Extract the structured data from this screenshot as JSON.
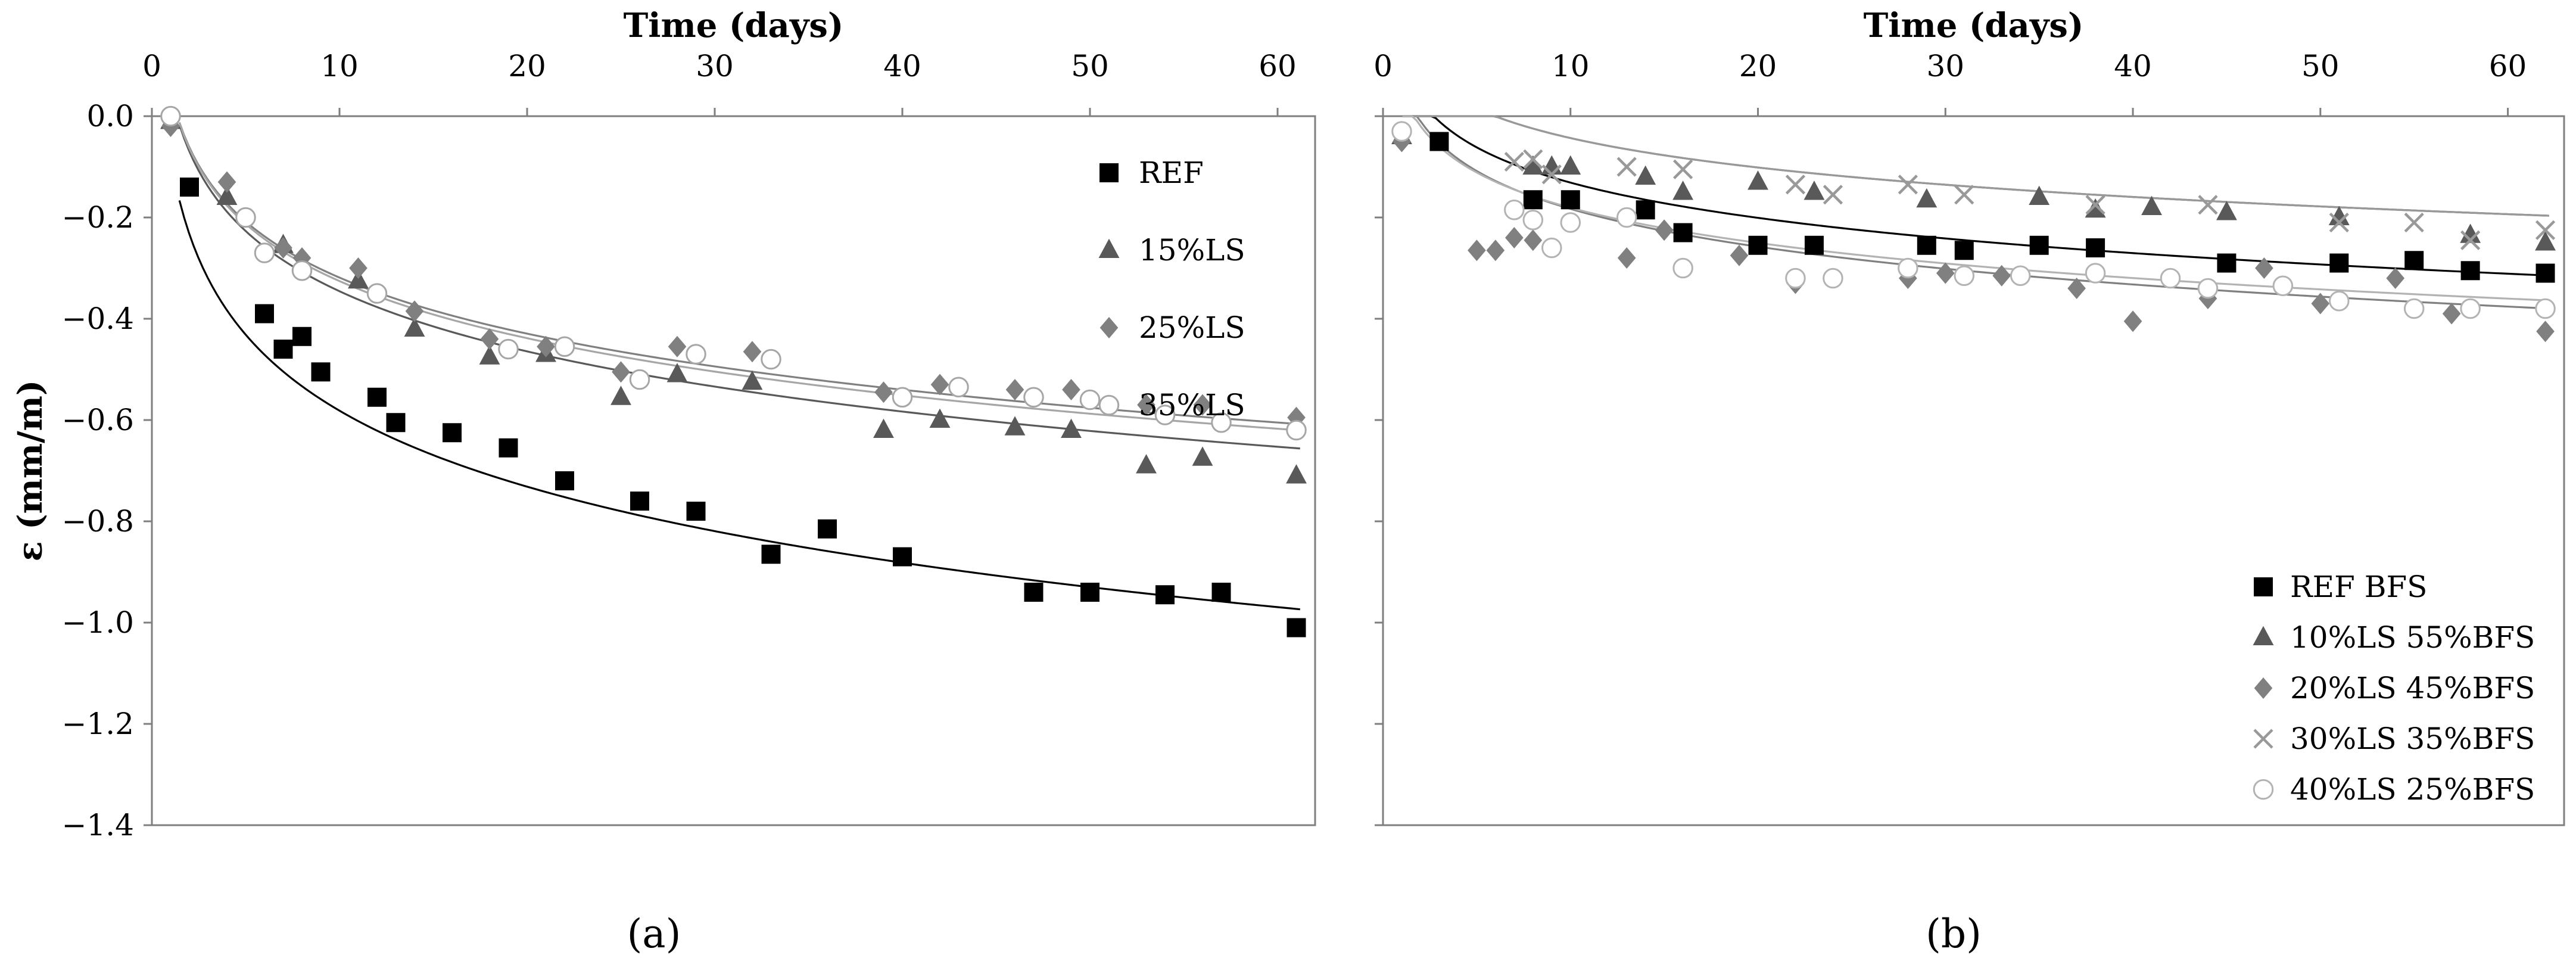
{
  "chart_data": [
    {
      "panel": "a",
      "type": "scatter",
      "xlabel": "Time (days)",
      "xlabel_position": "top",
      "ylabel": "ε (mm/m)",
      "xlim": [
        0,
        62
      ],
      "ylim": [
        -1.4,
        0.0
      ],
      "xticks": [
        0,
        10,
        20,
        30,
        40,
        50,
        60
      ],
      "yticks": [
        0.0,
        -0.2,
        -0.4,
        -0.6,
        -0.8,
        -1.0,
        -1.2,
        -1.4
      ],
      "ytick_labels": [
        "0.0",
        "−0.2",
        "−0.4",
        "−0.6",
        "−0.8",
        "−1.0",
        "−1.2",
        "−1.4"
      ],
      "legend_position": "top-right",
      "trendline": "logarithmic",
      "series": [
        {
          "name": "REF",
          "marker": "square",
          "color": "#000000",
          "fill": "#000000",
          "points": [
            [
              2,
              -0.14
            ],
            [
              6,
              -0.39
            ],
            [
              7,
              -0.46
            ],
            [
              8,
              -0.435
            ],
            [
              9,
              -0.505
            ],
            [
              12,
              -0.555
            ],
            [
              13,
              -0.605
            ],
            [
              16,
              -0.625
            ],
            [
              19,
              -0.655
            ],
            [
              22,
              -0.72
            ],
            [
              26,
              -0.76
            ],
            [
              29,
              -0.78
            ],
            [
              33,
              -0.865
            ],
            [
              36,
              -0.815
            ],
            [
              40,
              -0.87
            ],
            [
              47,
              -0.94
            ],
            [
              50,
              -0.94
            ],
            [
              54,
              -0.945
            ],
            [
              57,
              -0.94
            ],
            [
              61,
              -1.01
            ]
          ],
          "fit": {
            "a": -0.083,
            "b": -0.2165,
            "x0": 1.47
          }
        },
        {
          "name": "15%LS",
          "marker": "triangle",
          "color": "#595959",
          "fill": "#595959",
          "points": [
            [
              1,
              -0.01
            ],
            [
              4,
              -0.16
            ],
            [
              7,
              -0.255
            ],
            [
              11,
              -0.325
            ],
            [
              14,
              -0.42
            ],
            [
              18,
              -0.475
            ],
            [
              21,
              -0.47
            ],
            [
              25,
              -0.555
            ],
            [
              28,
              -0.51
            ],
            [
              32,
              -0.525
            ],
            [
              39,
              -0.62
            ],
            [
              42,
              -0.6
            ],
            [
              46,
              -0.615
            ],
            [
              49,
              -0.62
            ],
            [
              53,
              -0.69
            ],
            [
              56,
              -0.675
            ],
            [
              61,
              -0.71
            ]
          ],
          "fit": {
            "a": 0.049,
            "b": -0.1714,
            "x0": 1.47
          }
        },
        {
          "name": "25%LS",
          "marker": "diamond",
          "color": "#808080",
          "fill": "#808080",
          "points": [
            [
              1,
              -0.02
            ],
            [
              4,
              -0.13
            ],
            [
              7,
              -0.26
            ],
            [
              8,
              -0.28
            ],
            [
              11,
              -0.3
            ],
            [
              14,
              -0.385
            ],
            [
              18,
              -0.44
            ],
            [
              21,
              -0.455
            ],
            [
              25,
              -0.505
            ],
            [
              28,
              -0.455
            ],
            [
              32,
              -0.465
            ],
            [
              39,
              -0.545
            ],
            [
              42,
              -0.53
            ],
            [
              46,
              -0.54
            ],
            [
              49,
              -0.54
            ],
            [
              53,
              -0.57
            ],
            [
              56,
              -0.57
            ],
            [
              61,
              -0.595
            ]
          ],
          "fit": {
            "a": 0.049,
            "b": -0.1597,
            "x0": 1.47
          }
        },
        {
          "name": "35%LS",
          "marker": "circle",
          "color": "#a6a6a6",
          "fill": "#ffffff",
          "points": [
            [
              1,
              0.0
            ],
            [
              5,
              -0.2
            ],
            [
              6,
              -0.27
            ],
            [
              8,
              -0.305
            ],
            [
              12,
              -0.35
            ],
            [
              19,
              -0.46
            ],
            [
              22,
              -0.455
            ],
            [
              26,
              -0.52
            ],
            [
              29,
              -0.47
            ],
            [
              33,
              -0.48
            ],
            [
              40,
              -0.555
            ],
            [
              43,
              -0.535
            ],
            [
              47,
              -0.555
            ],
            [
              50,
              -0.56
            ],
            [
              54,
              -0.59
            ],
            [
              57,
              -0.605
            ],
            [
              61,
              -0.62
            ]
          ],
          "fit": {
            "a": 0.049,
            "b": -0.1627,
            "x0": 1.47
          }
        }
      ]
    },
    {
      "panel": "b",
      "type": "scatter",
      "xlabel": "Time (days)",
      "xlabel_position": "top",
      "ylabel": "",
      "xlim": [
        0,
        63
      ],
      "ylim": [
        -1.4,
        0.0
      ],
      "xticks": [
        0,
        10,
        20,
        30,
        40,
        50,
        60
      ],
      "yticks": [
        0.0,
        -0.2,
        -0.4,
        -0.6,
        -0.8,
        -1.0,
        -1.2,
        -1.4
      ],
      "legend_position": "bottom-right",
      "trendline": "logarithmic",
      "series": [
        {
          "name": "REF BFS",
          "marker": "square",
          "color": "#000000",
          "fill": "#000000",
          "points": [
            [
              3,
              -0.05
            ],
            [
              8,
              -0.165
            ],
            [
              10,
              -0.165
            ],
            [
              14,
              -0.185
            ],
            [
              16,
              -0.23
            ],
            [
              20,
              -0.255
            ],
            [
              23,
              -0.255
            ],
            [
              29,
              -0.255
            ],
            [
              31,
              -0.265
            ],
            [
              35,
              -0.255
            ],
            [
              38,
              -0.26
            ],
            [
              45,
              -0.29
            ],
            [
              51,
              -0.29
            ],
            [
              55,
              -0.285
            ],
            [
              58,
              -0.305
            ],
            [
              62,
              -0.31
            ]
          ],
          "fit": {
            "a": 0.1,
            "b": -0.1004,
            "x0": 1.03
          }
        },
        {
          "name": "10%LS 55%BFS",
          "marker": "triangle",
          "color": "#595959",
          "fill": "#595959",
          "points": [
            [
              1,
              -0.04
            ],
            [
              8,
              -0.1
            ],
            [
              9,
              -0.1
            ],
            [
              10,
              -0.1
            ],
            [
              14,
              -0.12
            ],
            [
              16,
              -0.15
            ],
            [
              20,
              -0.13
            ],
            [
              23,
              -0.15
            ],
            [
              29,
              -0.165
            ],
            [
              35,
              -0.16
            ],
            [
              38,
              -0.185
            ],
            [
              41,
              -0.18
            ],
            [
              45,
              -0.19
            ],
            [
              51,
              -0.2
            ],
            [
              58,
              -0.235
            ],
            [
              62,
              -0.25
            ]
          ],
          "fit": {
            "a": 0.15,
            "b": -0.0839,
            "x0": 1.03
          }
        },
        {
          "name": "20%LS 45%BFS",
          "marker": "diamond",
          "color": "#808080",
          "fill": "#808080",
          "points": [
            [
              1,
              -0.05
            ],
            [
              5,
              -0.265
            ],
            [
              6,
              -0.265
            ],
            [
              7,
              -0.24
            ],
            [
              8,
              -0.245
            ],
            [
              13,
              -0.28
            ],
            [
              15,
              -0.225
            ],
            [
              19,
              -0.275
            ],
            [
              22,
              -0.33
            ],
            [
              28,
              -0.32
            ],
            [
              30,
              -0.31
            ],
            [
              33,
              -0.315
            ],
            [
              37,
              -0.34
            ],
            [
              40,
              -0.405
            ],
            [
              44,
              -0.36
            ],
            [
              47,
              -0.3
            ],
            [
              50,
              -0.37
            ],
            [
              54,
              -0.32
            ],
            [
              57,
              -0.39
            ],
            [
              62,
              -0.425
            ]
          ],
          "fit": {
            "a": 0.065,
            "b": -0.1077,
            "x0": 1.03
          }
        },
        {
          "name": "30%LS 35%BFS",
          "marker": "cross",
          "color": "#999999",
          "fill": "none",
          "points": [
            [
              7,
              -0.09
            ],
            [
              8,
              -0.085
            ],
            [
              9,
              -0.115
            ],
            [
              13,
              -0.1
            ],
            [
              16,
              -0.105
            ],
            [
              22,
              -0.135
            ],
            [
              24,
              -0.155
            ],
            [
              28,
              -0.135
            ],
            [
              31,
              -0.155
            ],
            [
              38,
              -0.175
            ],
            [
              44,
              -0.175
            ],
            [
              51,
              -0.21
            ],
            [
              55,
              -0.21
            ],
            [
              58,
              -0.245
            ],
            [
              62,
              -0.225
            ]
          ],
          "fit": {
            "a": 0.15,
            "b": -0.0839,
            "x0": 1.03
          }
        },
        {
          "name": "40%LS 25%BFS",
          "marker": "circle",
          "color": "#b3b3b3",
          "fill": "#ffffff",
          "points": [
            [
              1,
              -0.03
            ],
            [
              7,
              -0.185
            ],
            [
              8,
              -0.205
            ],
            [
              9,
              -0.26
            ],
            [
              10,
              -0.21
            ],
            [
              13,
              -0.2
            ],
            [
              16,
              -0.3
            ],
            [
              22,
              -0.32
            ],
            [
              24,
              -0.32
            ],
            [
              28,
              -0.3
            ],
            [
              31,
              -0.315
            ],
            [
              34,
              -0.315
            ],
            [
              38,
              -0.31
            ],
            [
              42,
              -0.32
            ],
            [
              44,
              -0.34
            ],
            [
              48,
              -0.335
            ],
            [
              51,
              -0.365
            ],
            [
              55,
              -0.38
            ],
            [
              58,
              -0.38
            ],
            [
              62,
              -0.38
            ]
          ],
          "fit": {
            "a": 0.05,
            "b": -0.1002,
            "x0": 1.03
          }
        }
      ]
    }
  ],
  "panel_labels": [
    "(a)",
    "(b)"
  ]
}
